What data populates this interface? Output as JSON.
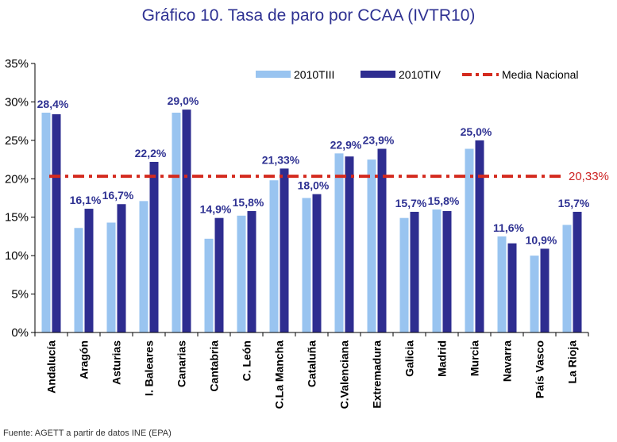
{
  "chart_data": {
    "type": "bar",
    "title": "Gráfico 10. Tasa de paro por CCAA (IVTR10)",
    "source": "Fuente: AGETT a partir de datos INE (EPA)",
    "categories": [
      "Andalucía",
      "Aragón",
      "Asturias",
      "I. Baleares",
      "Canarias",
      "Cantabria",
      "C. León",
      "C.La Mancha",
      "Cataluña",
      "C.Valenciana",
      "Extremadura",
      "Galicia",
      "Madrid",
      "Murcia",
      "Navarra",
      "País Vasco",
      "La Rioja"
    ],
    "series": [
      {
        "name": "2010TIII",
        "color": "#99c4f0",
        "values": [
          28.6,
          13.6,
          14.3,
          17.1,
          28.6,
          12.2,
          15.2,
          19.8,
          17.5,
          23.3,
          22.5,
          14.9,
          16.0,
          23.9,
          12.5,
          10.0,
          14.0
        ]
      },
      {
        "name": "2010TIV",
        "color": "#2e2d90",
        "values": [
          28.4,
          16.1,
          16.7,
          22.2,
          29.0,
          14.9,
          15.8,
          21.33,
          18.0,
          22.9,
          23.9,
          15.7,
          15.8,
          25.0,
          11.6,
          10.9,
          15.7
        ]
      }
    ],
    "data_labels": [
      "28,4%",
      "16,1%",
      "16,7%",
      "22,2%",
      "29,0%",
      "14,9%",
      "15,8%",
      "21,33%",
      "18,0%",
      "22,9%",
      "23,9%",
      "15,7%",
      "15,8%",
      "25,0%",
      "11,6%",
      "10,9%",
      "15,7%"
    ],
    "reference_line": {
      "name": "Media Nacional",
      "value": 20.33,
      "label": "20,33%",
      "color": "#d42a1e"
    },
    "ylim": [
      0,
      35
    ],
    "yticks": [
      0,
      5,
      10,
      15,
      20,
      25,
      30,
      35
    ],
    "ytick_labels": [
      "0%",
      "5%",
      "10%",
      "15%",
      "20%",
      "25%",
      "30%",
      "35%"
    ],
    "xlabel": "",
    "ylabel": "",
    "legend_position": "top-right"
  }
}
